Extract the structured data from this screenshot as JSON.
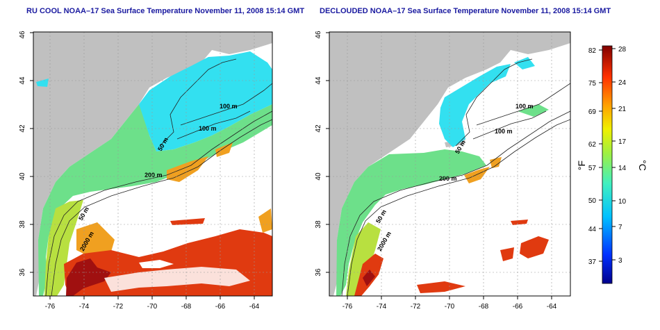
{
  "panels": [
    {
      "title": "RU COOL NOAA–17 Sea Surface Temperature November 11, 2008 15:14 GMT"
    },
    {
      "title": "DECLOUDED NOAA–17 Sea Surface Temperature November 11, 2008 15:14 GMT"
    }
  ],
  "axes": {
    "x_ticks": [
      "-76",
      "-74",
      "-72",
      "-70",
      "-68",
      "-66",
      "-64"
    ],
    "y_ticks": [
      "36",
      "38",
      "40",
      "42",
      "44",
      "46"
    ]
  },
  "contour_labels": [
    "100 m",
    "100 m",
    "50 m",
    "200 m",
    "50 m",
    "2000 m"
  ],
  "colorbar": {
    "f_ticks": [
      "82",
      "75",
      "69",
      "62",
      "57",
      "50",
      "44",
      "37"
    ],
    "c_ticks": [
      "28",
      "24",
      "21",
      "17",
      "14",
      "10",
      "7",
      "3"
    ],
    "f_label": "°F",
    "c_label": "°C"
  },
  "colors": {
    "land": "#c0c0c0",
    "title": "#1a1aa0",
    "cold": "#33e0f0",
    "cool": "#6de08a",
    "mild": "#b8e040",
    "warm": "#f0a020",
    "hot": "#e03a10",
    "hottest": "#a01010"
  }
}
